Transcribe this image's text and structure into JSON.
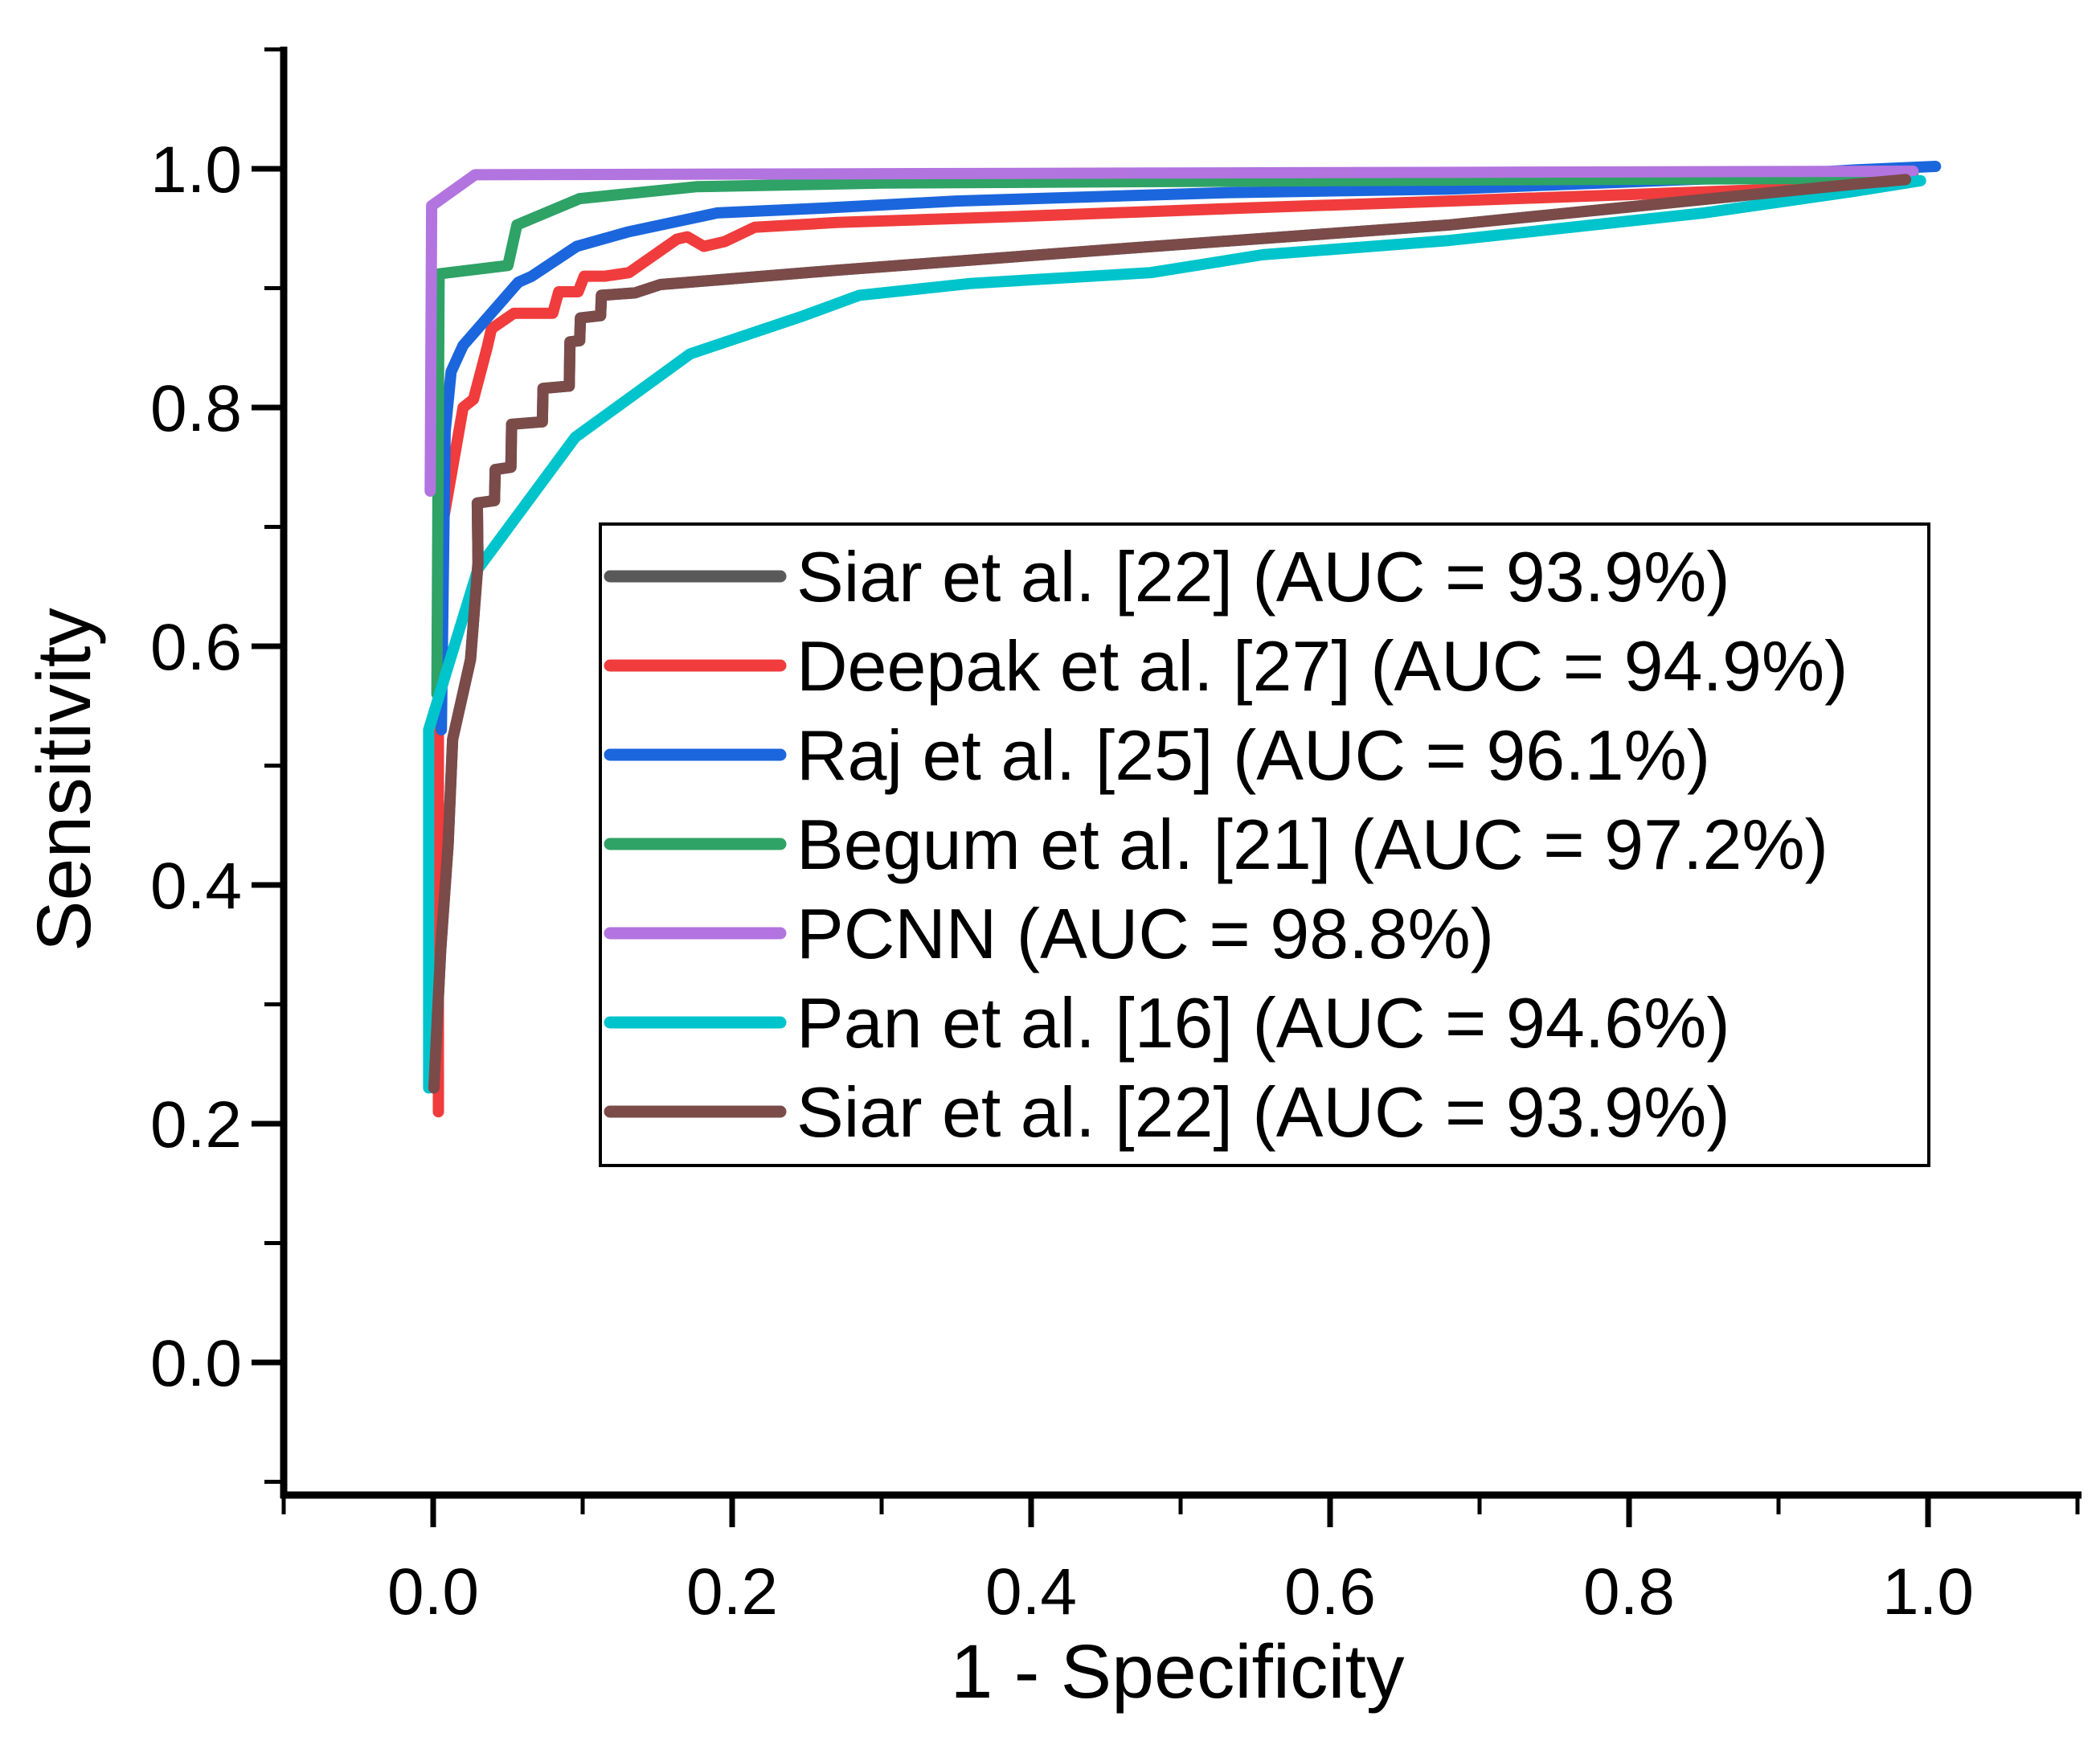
{
  "chart_data": {
    "type": "line",
    "title": "",
    "xlabel": "1 - Specificity",
    "ylabel": "Sensitivity",
    "xlim": [
      -0.1,
      1.08
    ],
    "ylim": [
      -0.08,
      1.1
    ],
    "grid": false,
    "legend_position": "inside-center",
    "x_major_ticks": [
      0.0,
      0.2,
      0.4,
      0.6,
      0.8,
      1.0
    ],
    "x_minor_ticks": [
      -0.1,
      0.1,
      0.3,
      0.5,
      0.7,
      0.9,
      1.1
    ],
    "y_major_ticks": [
      0.0,
      0.2,
      0.4,
      0.6,
      0.8,
      1.0
    ],
    "y_minor_ticks": [
      -0.1,
      0.1,
      0.3,
      0.5,
      0.7,
      0.9,
      1.1
    ],
    "x_tick_labels": [
      "0.0",
      "0.2",
      "0.4",
      "0.6",
      "0.8",
      "1.0"
    ],
    "y_tick_labels": [
      "0.0",
      "0.2",
      "0.4",
      "0.6",
      "0.8",
      "1.0"
    ],
    "series": [
      {
        "name": "Siar et al. [22] (AUC = 93.9%)",
        "auc": "93.9%",
        "color": "#595959",
        "points": [
          [
            0.0005,
            0.23
          ],
          [
            0.005,
            0.345
          ],
          [
            0.01,
            0.434
          ],
          [
            0.013,
            0.522
          ],
          [
            0.025,
            0.589
          ],
          [
            0.03,
            0.67
          ],
          [
            0.0295,
            0.72
          ],
          [
            0.041,
            0.722
          ],
          [
            0.0415,
            0.748
          ],
          [
            0.052,
            0.75
          ],
          [
            0.0525,
            0.786
          ],
          [
            0.073,
            0.788
          ],
          [
            0.0735,
            0.816
          ],
          [
            0.091,
            0.818
          ],
          [
            0.0915,
            0.855
          ],
          [
            0.098,
            0.856
          ],
          [
            0.0985,
            0.875
          ],
          [
            0.112,
            0.877
          ],
          [
            0.1125,
            0.894
          ],
          [
            0.135,
            0.896
          ],
          [
            0.152,
            0.903
          ],
          [
            0.27,
            0.915
          ],
          [
            0.46,
            0.933
          ],
          [
            0.68,
            0.953
          ],
          [
            0.8,
            0.968
          ],
          [
            0.95,
            0.987
          ],
          [
            0.985,
            0.991
          ]
        ]
      },
      {
        "name": "Deepak et al. [27] (AUC = 94.9%)",
        "auc": "94.9%",
        "color": "#F03C3C",
        "points": [
          [
            0.0035,
            0.21
          ],
          [
            0.0035,
            0.6
          ],
          [
            0.006,
            0.7
          ],
          [
            0.02,
            0.8
          ],
          [
            0.027,
            0.807
          ],
          [
            0.036,
            0.85
          ],
          [
            0.039,
            0.866
          ],
          [
            0.054,
            0.879
          ],
          [
            0.08,
            0.879
          ],
          [
            0.084,
            0.897
          ],
          [
            0.097,
            0.897
          ],
          [
            0.101,
            0.91
          ],
          [
            0.115,
            0.91
          ],
          [
            0.131,
            0.913
          ],
          [
            0.163,
            0.941
          ],
          [
            0.17,
            0.943
          ],
          [
            0.181,
            0.935
          ],
          [
            0.195,
            0.939
          ],
          [
            0.215,
            0.951
          ],
          [
            0.27,
            0.955
          ],
          [
            0.39,
            0.96
          ],
          [
            0.54,
            0.967
          ],
          [
            0.68,
            0.973
          ],
          [
            0.88,
            0.982
          ],
          [
            0.985,
            0.988
          ]
        ]
      },
      {
        "name": "Raj et al. [25] (AUC = 96.1%)",
        "auc": "96.1%",
        "color": "#1B66DD",
        "points": [
          [
            0.0055,
            0.53
          ],
          [
            0.008,
            0.78
          ],
          [
            0.012,
            0.83
          ],
          [
            0.02,
            0.852
          ],
          [
            0.057,
            0.905
          ],
          [
            0.066,
            0.91
          ],
          [
            0.096,
            0.935
          ],
          [
            0.13,
            0.947
          ],
          [
            0.19,
            0.963
          ],
          [
            0.26,
            0.967
          ],
          [
            0.35,
            0.973
          ],
          [
            0.53,
            0.98
          ],
          [
            0.68,
            0.983
          ],
          [
            0.86,
            0.992
          ],
          [
            0.95,
            0.999
          ],
          [
            1.005,
            1.002
          ]
        ]
      },
      {
        "name": "Begum et al. [21] (AUC = 97.2%)",
        "auc": "97.2%",
        "color": "#2FA266",
        "points": [
          [
            0.0025,
            0.56
          ],
          [
            0.004,
            0.912
          ],
          [
            0.05,
            0.919
          ],
          [
            0.056,
            0.953
          ],
          [
            0.098,
            0.975
          ],
          [
            0.176,
            0.985
          ],
          [
            0.3,
            0.988
          ],
          [
            0.6,
            0.99
          ],
          [
            0.95,
            0.992
          ],
          [
            0.99,
            0.996
          ]
        ]
      },
      {
        "name": "PCNN (AUC = 98.8%)",
        "auc": "98.8%",
        "color": "#B274DF",
        "points": [
          [
            -0.002,
            0.73
          ],
          [
            -0.001,
            0.969
          ],
          [
            0.028,
            0.995
          ],
          [
            0.99,
            0.998
          ]
        ]
      },
      {
        "name": "Pan et al. [16] (AUC = 94.6%)",
        "auc": "94.6%",
        "color": "#00C4CB",
        "points": [
          [
            -0.003,
            0.23
          ],
          [
            -0.003,
            0.53
          ],
          [
            0.03,
            0.665
          ],
          [
            0.095,
            0.775
          ],
          [
            0.172,
            0.845
          ],
          [
            0.248,
            0.877
          ],
          [
            0.285,
            0.894
          ],
          [
            0.36,
            0.904
          ],
          [
            0.48,
            0.913
          ],
          [
            0.555,
            0.928
          ],
          [
            0.68,
            0.94
          ],
          [
            0.85,
            0.963
          ],
          [
            0.95,
            0.981
          ],
          [
            0.995,
            0.99
          ]
        ]
      },
      {
        "name": "Siar et al. [22] (AUC = 93.9%)",
        "auc": "93.9%",
        "color": "#7A4B49",
        "points": [
          [
            0.0005,
            0.23
          ],
          [
            0.005,
            0.345
          ],
          [
            0.01,
            0.434
          ],
          [
            0.013,
            0.522
          ],
          [
            0.025,
            0.589
          ],
          [
            0.03,
            0.67
          ],
          [
            0.0295,
            0.72
          ],
          [
            0.041,
            0.722
          ],
          [
            0.0415,
            0.748
          ],
          [
            0.052,
            0.75
          ],
          [
            0.0525,
            0.786
          ],
          [
            0.073,
            0.788
          ],
          [
            0.0735,
            0.816
          ],
          [
            0.091,
            0.818
          ],
          [
            0.0915,
            0.855
          ],
          [
            0.098,
            0.856
          ],
          [
            0.0985,
            0.875
          ],
          [
            0.112,
            0.877
          ],
          [
            0.1125,
            0.894
          ],
          [
            0.135,
            0.896
          ],
          [
            0.152,
            0.903
          ],
          [
            0.27,
            0.915
          ],
          [
            0.46,
            0.933
          ],
          [
            0.68,
            0.953
          ],
          [
            0.8,
            0.968
          ],
          [
            0.95,
            0.987
          ],
          [
            0.985,
            0.991
          ]
        ]
      }
    ]
  }
}
